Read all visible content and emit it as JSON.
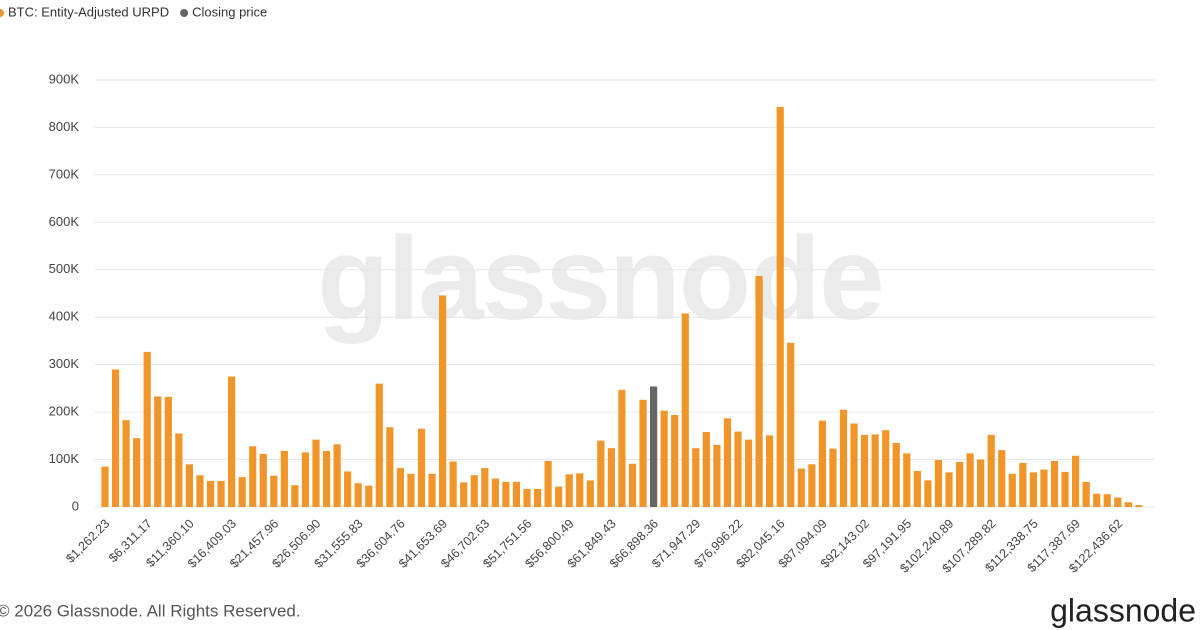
{
  "chart_data": {
    "type": "bar",
    "watermark": "glassnode",
    "footer": "© 2026 Glassnode. All Rights Reserved.",
    "logo": "glassnode",
    "grid": true,
    "legend_position": "top-left",
    "ylim": [
      0,
      900000
    ],
    "yticks": [
      0,
      {
        "value": 100000,
        "label": "100K"
      },
      {
        "value": 200000,
        "label": "200K"
      },
      {
        "value": 300000,
        "label": "300K"
      },
      {
        "value": 400000,
        "label": "400K"
      },
      {
        "value": 500000,
        "label": "500K"
      },
      {
        "value": 600000,
        "label": "600K"
      },
      {
        "value": 700000,
        "label": "700K"
      },
      {
        "value": 800000,
        "label": "800K"
      },
      {
        "value": 900000,
        "label": "900K"
      }
    ],
    "categories": [
      "$1,262.23",
      null,
      null,
      null,
      "$6,311.17",
      null,
      null,
      null,
      "$11,360.10",
      null,
      null,
      null,
      "$16,409.03",
      null,
      null,
      null,
      "$21,457.96",
      null,
      null,
      null,
      "$26,506.90",
      null,
      null,
      null,
      "$31,555.83",
      null,
      null,
      null,
      "$36,604.76",
      null,
      null,
      null,
      "$41,653.69",
      null,
      null,
      null,
      "$46,702.63",
      null,
      null,
      null,
      "$51,751.56",
      null,
      null,
      null,
      "$56,800.49",
      null,
      null,
      null,
      "$61,849.43",
      null,
      null,
      null,
      "$66,898.36",
      null,
      null,
      null,
      "$71,947.29",
      null,
      null,
      null,
      "$76,996.22",
      null,
      null,
      null,
      "$82,045.16",
      null,
      null,
      null,
      "$87,094.09",
      null,
      null,
      null,
      "$92,143.02",
      null,
      null,
      null,
      "$97,191.95",
      null,
      null,
      null,
      "$102,240.89",
      null,
      null,
      null,
      "$107,289.82",
      null,
      null,
      null,
      "$112,338.75",
      null,
      null,
      null,
      "$117,387.69",
      null,
      null,
      null,
      "$122,436.62",
      null,
      null
    ],
    "series": [
      {
        "name": "BTC: Entity-Adjusted URPD",
        "color": "#f0952a",
        "values": [
          85000,
          290000,
          183000,
          145000,
          327000,
          233000,
          232000,
          155000,
          90000,
          67000,
          55000,
          55000,
          275000,
          63000,
          128000,
          112000,
          66000,
          118000,
          46000,
          115000,
          142000,
          118000,
          132000,
          75000,
          50000,
          45000,
          260000,
          168000,
          82000,
          70000,
          165000,
          70000,
          446000,
          96000,
          52000,
          67000,
          82000,
          60000,
          53000,
          53000,
          38000,
          38000,
          97000,
          43000,
          69000,
          71000,
          56000,
          140000,
          124000,
          247000,
          91000,
          226000,
          null,
          203000,
          194000,
          408000,
          124000,
          158000,
          131000,
          187000,
          159000,
          142000,
          487000,
          151000,
          843000,
          346000,
          81000,
          90000,
          182000,
          123000,
          205000,
          176000,
          152000,
          153000,
          162000,
          135000,
          113000,
          76000,
          56000,
          99000,
          73000,
          95000,
          113000,
          100000,
          152000,
          120000,
          70000,
          93000,
          73000,
          79000,
          97000,
          74000,
          108000,
          53000,
          28000,
          27000,
          20000,
          10000,
          4000
        ]
      },
      {
        "name": "Closing price",
        "color": "#666666",
        "values": [
          null,
          null,
          null,
          null,
          null,
          null,
          null,
          null,
          null,
          null,
          null,
          null,
          null,
          null,
          null,
          null,
          null,
          null,
          null,
          null,
          null,
          null,
          null,
          null,
          null,
          null,
          null,
          null,
          null,
          null,
          null,
          null,
          null,
          null,
          null,
          null,
          null,
          null,
          null,
          null,
          null,
          null,
          null,
          null,
          null,
          null,
          null,
          null,
          null,
          null,
          null,
          null,
          254000,
          null,
          null,
          null,
          null,
          null,
          null,
          null,
          null,
          null,
          null,
          null,
          null,
          null,
          null,
          null,
          null,
          null,
          null,
          null,
          null,
          null,
          null,
          null,
          null,
          null,
          null,
          null,
          null,
          null,
          null,
          null,
          null,
          null,
          null,
          null,
          null,
          null,
          null,
          null,
          null,
          null,
          null,
          null,
          null,
          null,
          null
        ]
      }
    ]
  }
}
